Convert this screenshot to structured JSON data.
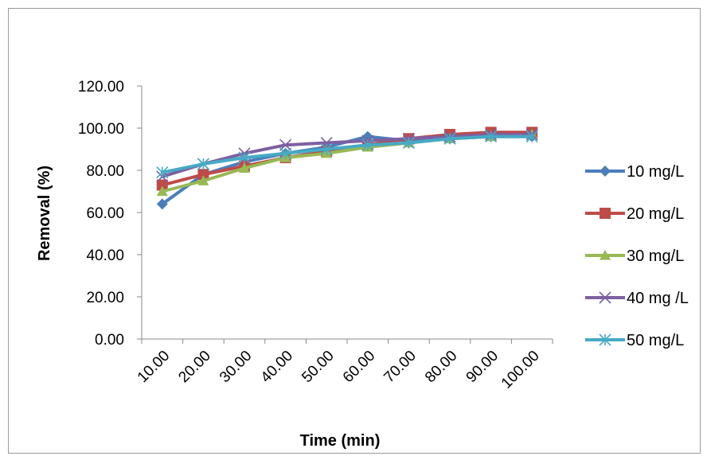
{
  "chart_data": {
    "type": "line",
    "title": "",
    "xlabel": "Time (min)",
    "ylabel": "Removal (%)",
    "x": [
      10,
      20,
      30,
      40,
      50,
      60,
      70,
      80,
      90,
      100
    ],
    "x_tick_labels": [
      "10.00",
      "20.00",
      "30.00",
      "40.00",
      "50.00",
      "60.00",
      "70.00",
      "80.00",
      "90.00",
      "100.00"
    ],
    "ylim": [
      0,
      120
    ],
    "y_ticks": [
      0,
      20,
      40,
      60,
      80,
      100,
      120
    ],
    "y_tick_labels": [
      "0.00",
      "20.00",
      "40.00",
      "60.00",
      "80.00",
      "100.00",
      "120.00"
    ],
    "grid": false,
    "legend": "right",
    "series": [
      {
        "name": "10 mg/L",
        "color": "#4a7ebb",
        "marker": "diamond",
        "values": [
          64,
          78,
          84,
          88,
          91,
          96,
          94,
          95,
          96,
          96
        ]
      },
      {
        "name": "20 mg/L",
        "color": "#be4b48",
        "marker": "square",
        "values": [
          73,
          78,
          82,
          86,
          89,
          92,
          95,
          97,
          98,
          98
        ]
      },
      {
        "name": "30 mg/L",
        "color": "#98b954",
        "marker": "triangle",
        "values": [
          70,
          75,
          81,
          86,
          88,
          91,
          93,
          95,
          96,
          97
        ]
      },
      {
        "name": "40 mg /L",
        "color": "#7d60a0",
        "marker": "x",
        "values": [
          77,
          83,
          88,
          92,
          93,
          94,
          95,
          96,
          97,
          97
        ]
      },
      {
        "name": "50 mg/L",
        "color": "#46aac5",
        "marker": "star",
        "values": [
          79,
          83,
          86,
          88,
          90,
          92,
          93,
          95,
          96,
          96
        ]
      }
    ]
  }
}
